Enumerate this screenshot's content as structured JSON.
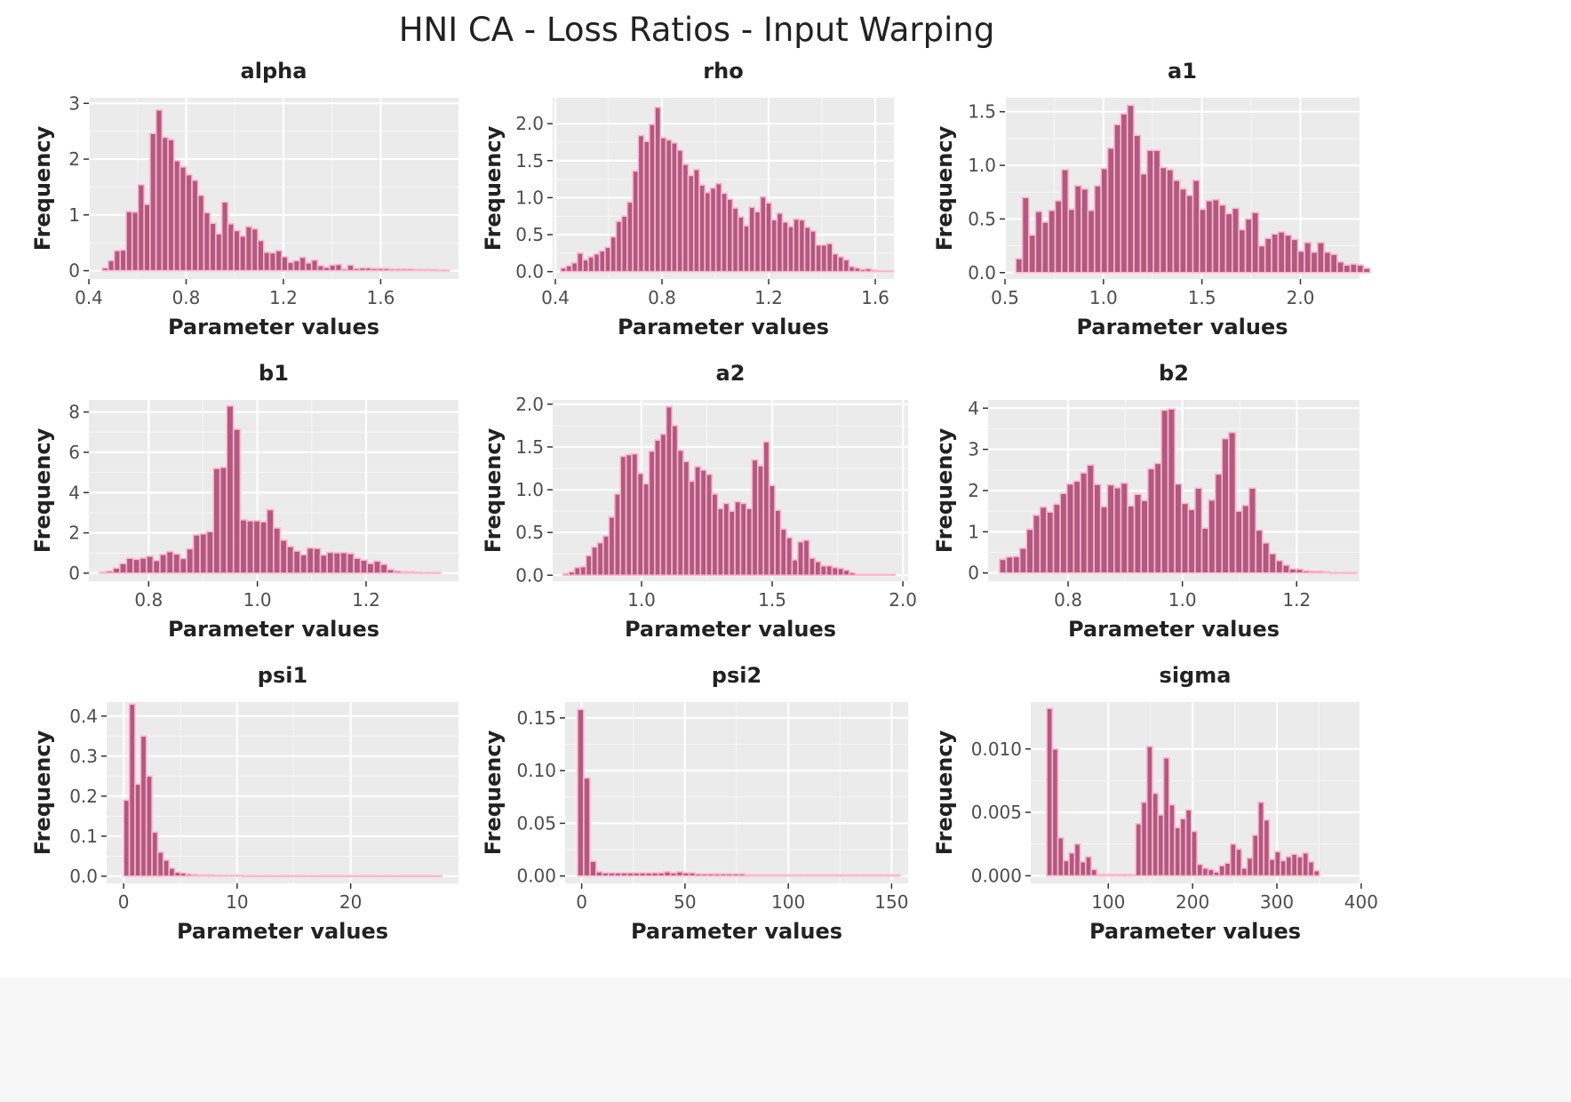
{
  "figure_title": "HNI CA - Loss Ratios - Input Warping",
  "colors": {
    "panel_bg": "#ebebeb",
    "grid": "#ffffff",
    "bar_fill": "#b05a80",
    "bar_stroke": "#ffb6cf",
    "text": "#222222",
    "tick_text": "#4d4d4d"
  },
  "chart_data": [
    {
      "type": "bar",
      "title": "alpha",
      "xlabel": "Parameter values",
      "ylabel": "Frequency",
      "xlim": [
        0.4,
        1.92
      ],
      "ylim": [
        -0.15,
        3.1
      ],
      "xticks": [
        0.4,
        0.8,
        1.2,
        1.6
      ],
      "xtick_labels": [
        "0.4",
        "0.8",
        "1.2",
        "1.6"
      ],
      "yticks": [
        0,
        1,
        2,
        3
      ],
      "ytick_labels": [
        "0",
        "1",
        "2",
        "3"
      ],
      "bin_start": 0.455,
      "bin_width": 0.0246,
      "values": [
        0.05,
        0.18,
        0.36,
        0.37,
        1.06,
        1.05,
        1.54,
        1.19,
        2.46,
        2.88,
        2.39,
        2.35,
        1.97,
        1.86,
        1.72,
        1.62,
        1.35,
        1.04,
        0.85,
        0.66,
        1.23,
        0.84,
        0.72,
        0.62,
        0.79,
        0.75,
        0.54,
        0.33,
        0.32,
        0.36,
        0.25,
        0.15,
        0.18,
        0.24,
        0.14,
        0.19,
        0.09,
        0.06,
        0.1,
        0.11,
        0.03,
        0.1,
        0.04,
        0.05,
        0.05,
        0.04,
        0.04,
        0.04,
        0.03,
        0.03,
        0.03,
        0.03,
        0.02,
        0.02,
        0.02,
        0.02,
        0.01,
        0.01
      ]
    },
    {
      "type": "bar",
      "title": "rho",
      "xlabel": "Parameter values",
      "ylabel": "Frequency",
      "xlim": [
        0.39,
        1.67
      ],
      "ylim": [
        -0.1,
        2.35
      ],
      "xticks": [
        0.4,
        0.8,
        1.2,
        1.6
      ],
      "xtick_labels": [
        "0.4",
        "0.8",
        "1.2",
        "1.6"
      ],
      "yticks": [
        0,
        0.5,
        1,
        1.5,
        2
      ],
      "ytick_labels": [
        "0.0",
        "0.5",
        "1.0",
        "1.5",
        "2.0"
      ],
      "bin_start": 0.42,
      "bin_width": 0.0208,
      "values": [
        0.05,
        0.08,
        0.12,
        0.25,
        0.16,
        0.2,
        0.24,
        0.28,
        0.33,
        0.47,
        0.68,
        0.75,
        0.94,
        1.36,
        1.84,
        1.76,
        1.99,
        2.22,
        1.81,
        1.78,
        1.74,
        1.64,
        1.45,
        1.3,
        1.38,
        1.17,
        1.07,
        1.13,
        1.19,
        1.06,
        0.98,
        0.86,
        0.74,
        0.62,
        0.87,
        0.81,
        1.01,
        0.93,
        0.7,
        0.79,
        0.67,
        0.61,
        0.71,
        0.7,
        0.6,
        0.55,
        0.36,
        0.36,
        0.38,
        0.24,
        0.2,
        0.16,
        0.07,
        0.05,
        0.03,
        0.04,
        0.02,
        0.01,
        0.01,
        0.01
      ]
    },
    {
      "type": "bar",
      "title": "a1",
      "xlabel": "Parameter values",
      "ylabel": "Frequency",
      "xlim": [
        0.5,
        2.3
      ],
      "ylim": [
        -0.06,
        1.63
      ],
      "xticks": [
        0.5,
        1.0,
        1.5,
        2.0
      ],
      "xtick_labels": [
        "0.5",
        "1.0",
        "1.5",
        "2.0"
      ],
      "yticks": [
        0,
        0.5,
        1,
        1.5
      ],
      "ytick_labels": [
        "0.0",
        "0.5",
        "1.0",
        "1.5"
      ],
      "bin_start": 0.555,
      "bin_width": 0.0333,
      "values": [
        0.13,
        0.7,
        0.35,
        0.57,
        0.47,
        0.58,
        0.67,
        0.96,
        0.59,
        0.81,
        0.78,
        0.58,
        0.81,
        0.97,
        1.16,
        1.38,
        1.48,
        1.56,
        1.28,
        0.92,
        1.14,
        1.14,
        0.98,
        0.96,
        0.86,
        0.78,
        0.72,
        0.86,
        0.59,
        0.67,
        0.68,
        0.63,
        0.55,
        0.6,
        0.4,
        0.5,
        0.56,
        0.25,
        0.32,
        0.36,
        0.38,
        0.35,
        0.31,
        0.2,
        0.28,
        0.19,
        0.28,
        0.19,
        0.17,
        0.1,
        0.07,
        0.08,
        0.07,
        0.04
      ]
    },
    {
      "type": "bar",
      "title": "b1",
      "xlabel": "Parameter values",
      "ylabel": "Frequency",
      "xlim": [
        0.69,
        1.37
      ],
      "ylim": [
        -0.4,
        8.6
      ],
      "xticks": [
        0.8,
        1.0,
        1.2
      ],
      "xtick_labels": [
        "0.8",
        "1.0",
        "1.2"
      ],
      "yticks": [
        0,
        2,
        4,
        6,
        8
      ],
      "ytick_labels": [
        "0",
        "2",
        "4",
        "6",
        "8"
      ],
      "bin_start": 0.71,
      "bin_width": 0.0123,
      "values": [
        0.05,
        0.1,
        0.25,
        0.48,
        0.74,
        0.69,
        0.75,
        0.84,
        0.63,
        0.93,
        1.07,
        0.95,
        0.73,
        1.21,
        1.9,
        1.95,
        2.06,
        5.2,
        5.25,
        8.3,
        7.14,
        2.65,
        2.6,
        2.6,
        2.55,
        3.15,
        2.24,
        1.64,
        1.32,
        1.1,
        0.92,
        1.25,
        1.23,
        0.9,
        1.03,
        1.01,
        1.02,
        0.97,
        0.74,
        0.65,
        0.48,
        0.6,
        0.44,
        0.18,
        0.1,
        0.07,
        0.06,
        0.04,
        0.03,
        0.03,
        0.03
      ]
    },
    {
      "type": "bar",
      "title": "a2",
      "xlabel": "Parameter values",
      "ylabel": "Frequency",
      "xlim": [
        0.66,
        2.02
      ],
      "ylim": [
        -0.07,
        2.05
      ],
      "xticks": [
        1.0,
        1.5,
        2.0
      ],
      "xtick_labels": [
        "1.0",
        "1.5",
        "2.0"
      ],
      "yticks": [
        0,
        0.5,
        1,
        1.5,
        2
      ],
      "ytick_labels": [
        "0.0",
        "0.5",
        "1.0",
        "1.5",
        "2.0"
      ],
      "bin_start": 0.7,
      "bin_width": 0.0219,
      "values": [
        0.02,
        0.04,
        0.09,
        0.1,
        0.23,
        0.33,
        0.38,
        0.46,
        0.68,
        0.95,
        1.39,
        1.41,
        1.42,
        1.19,
        1.07,
        1.45,
        1.58,
        1.65,
        1.97,
        1.75,
        1.46,
        1.33,
        1.1,
        1.27,
        1.23,
        1.18,
        0.95,
        0.78,
        0.84,
        0.75,
        0.86,
        0.84,
        0.78,
        1.35,
        1.28,
        1.56,
        1.05,
        0.76,
        0.54,
        0.44,
        0.18,
        0.39,
        0.41,
        0.2,
        0.16,
        0.11,
        0.11,
        0.09,
        0.08,
        0.06,
        0.03,
        0.01,
        0.01,
        0.01,
        0.01,
        0.01,
        0.01,
        0.01
      ]
    },
    {
      "type": "bar",
      "title": "b2",
      "xlabel": "Parameter values",
      "ylabel": "Frequency",
      "xlim": [
        0.66,
        1.31
      ],
      "ylim": [
        -0.2,
        4.2
      ],
      "xticks": [
        0.8,
        1.0,
        1.2
      ],
      "xtick_labels": [
        "0.8",
        "1.0",
        "1.2"
      ],
      "yticks": [
        0,
        1,
        2,
        3,
        4
      ],
      "ytick_labels": [
        "0",
        "1",
        "2",
        "3",
        "4"
      ],
      "bin_start": 0.68,
      "bin_width": 0.0118,
      "values": [
        0.33,
        0.39,
        0.4,
        0.6,
        1.06,
        1.4,
        1.6,
        1.48,
        1.67,
        1.93,
        2.16,
        2.23,
        2.43,
        2.62,
        2.15,
        1.61,
        2.14,
        2.07,
        2.18,
        1.63,
        1.91,
        1.76,
        2.53,
        2.66,
        3.95,
        3.98,
        2.16,
        1.69,
        1.54,
        2.06,
        1.09,
        1.77,
        2.4,
        3.26,
        3.41,
        1.5,
        1.64,
        2.06,
        1.04,
        0.73,
        0.47,
        0.3,
        0.19,
        0.1,
        0.09,
        0.05,
        0.04,
        0.04,
        0.03,
        0.01,
        0.01,
        0.01,
        0.01
      ]
    },
    {
      "type": "bar",
      "title": "psi1",
      "xlabel": "Parameter values",
      "ylabel": "Frequency",
      "xlim": [
        -1.5,
        29.5
      ],
      "ylim": [
        -0.018,
        0.435
      ],
      "xticks": [
        0,
        10,
        20
      ],
      "xtick_labels": [
        "0",
        "10",
        "20"
      ],
      "yticks": [
        0,
        0.1,
        0.2,
        0.3,
        0.4
      ],
      "ytick_labels": [
        "0.0",
        "0.1",
        "0.2",
        "0.3",
        "0.4"
      ],
      "bin_start": 0,
      "bin_width": 0.5,
      "values": [
        0.19,
        0.43,
        0.23,
        0.35,
        0.25,
        0.11,
        0.06,
        0.04,
        0.02,
        0.01,
        0.008,
        0.005,
        0.004,
        0.003,
        0.003,
        0.003,
        0.002,
        0.002,
        0.002,
        0.002,
        0.002,
        0.001,
        0.001,
        0.001,
        0.001,
        0.001,
        0.001,
        0.001,
        0.001,
        0.001,
        0.001,
        0.001,
        0.001,
        0.001,
        0.001,
        0.001,
        0.001,
        0.001,
        0.001,
        0.001,
        0.001,
        0.001,
        0.001,
        0.001,
        0.001,
        0.001,
        0.001,
        0.001,
        0.001,
        0.001,
        0.001,
        0.001,
        0.001,
        0.001,
        0.001,
        0.001
      ]
    },
    {
      "type": "bar",
      "title": "psi2",
      "xlabel": "Parameter values",
      "ylabel": "Frequency",
      "xlim": [
        -8,
        158
      ],
      "ylim": [
        -0.007,
        0.165
      ],
      "xticks": [
        0,
        50,
        100,
        150
      ],
      "xtick_labels": [
        "0",
        "50",
        "100",
        "150"
      ],
      "yticks": [
        0,
        0.05,
        0.1,
        0.15
      ],
      "ytick_labels": [
        "0.00",
        "0.05",
        "0.10",
        "0.15"
      ],
      "bin_start": -2,
      "bin_width": 3,
      "values": [
        0.158,
        0.093,
        0.014,
        0.004,
        0.003,
        0.003,
        0.003,
        0.003,
        0.003,
        0.003,
        0.003,
        0.003,
        0.003,
        0.003,
        0.004,
        0.003,
        0.004,
        0.003,
        0.003,
        0.002,
        0.002,
        0.002,
        0.002,
        0.002,
        0.002,
        0.002,
        0.002,
        0.001,
        0.001,
        0.001,
        0.001,
        0.001,
        0.001,
        0.001,
        0.001,
        0.001,
        0.001,
        0.001,
        0.001,
        0.001,
        0.001,
        0.001,
        0.001,
        0.001,
        0.001,
        0.001,
        0.001,
        0.001,
        0.001,
        0.001,
        0.001,
        0.001
      ]
    },
    {
      "type": "bar",
      "title": "sigma",
      "xlabel": "Parameter values",
      "ylabel": "Frequency",
      "xlim": [
        8,
        398
      ],
      "ylim": [
        -0.0006,
        0.0137
      ],
      "xticks": [
        100,
        200,
        300,
        400
      ],
      "xtick_labels": [
        "100",
        "200",
        "300",
        "400"
      ],
      "yticks": [
        0,
        0.005,
        0.01
      ],
      "ytick_labels": [
        "0.000",
        "0.005",
        "0.010"
      ],
      "bin_start": 27,
      "bin_width": 6.6,
      "values": [
        0.0132,
        0.01,
        0.003,
        0.0012,
        0.0018,
        0.0025,
        0.0011,
        0.0015,
        0.0005,
        0.0001,
        0.0001,
        0.0001,
        0.0001,
        0.0001,
        0.0001,
        0.0001,
        0.0041,
        0.0058,
        0.0102,
        0.0065,
        0.0048,
        0.0093,
        0.0056,
        0.0038,
        0.0045,
        0.0052,
        0.0035,
        0.0009,
        0.0006,
        0.0005,
        0.0003,
        0.0008,
        0.001,
        0.0025,
        0.0021,
        0.0006,
        0.0014,
        0.0032,
        0.0058,
        0.0044,
        0.0013,
        0.0019,
        0.0012,
        0.0015,
        0.0017,
        0.0015,
        0.0018,
        0.0011,
        0.0004
      ]
    }
  ]
}
